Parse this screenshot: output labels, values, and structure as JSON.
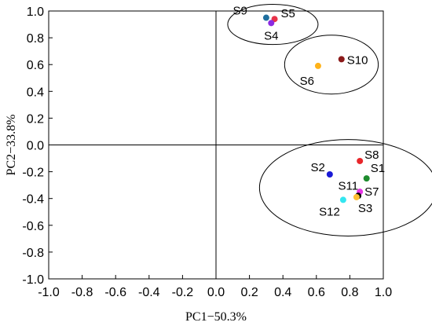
{
  "chart_data": {
    "type": "scatter",
    "xlabel": "PC1−50.3%",
    "ylabel": "PC2−33.8%",
    "xlim": [
      -1.0,
      1.0
    ],
    "ylim": [
      -1.0,
      1.0
    ],
    "x_ticks": [
      "-1.0",
      "-0.8",
      "-0.6",
      "-0.4",
      "-0.2",
      "0.0",
      "0.2",
      "0.4",
      "0.6",
      "0.8",
      "1.0"
    ],
    "y_ticks": [
      "-1.0",
      "-0.8",
      "-0.6",
      "-0.4",
      "-0.2",
      "0.0",
      "0.2",
      "0.4",
      "0.6",
      "0.8",
      "1.0"
    ],
    "grid": false,
    "zero_lines": true,
    "points": [
      {
        "label": "S9",
        "x": 0.3,
        "y": 0.95,
        "color": "#1f6f9f"
      },
      {
        "label": "S5",
        "x": 0.35,
        "y": 0.94,
        "color": "#e8334a"
      },
      {
        "label": "S4",
        "x": 0.33,
        "y": 0.91,
        "color": "#8b2be2"
      },
      {
        "label": "S10",
        "x": 0.75,
        "y": 0.64,
        "color": "#8b1a1a"
      },
      {
        "label": "S6",
        "x": 0.61,
        "y": 0.59,
        "color": "#ffb31a"
      },
      {
        "label": "S8",
        "x": 0.86,
        "y": -0.12,
        "color": "#e8262a"
      },
      {
        "label": "S2",
        "x": 0.68,
        "y": -0.22,
        "color": "#1a1ad6"
      },
      {
        "label": "S1",
        "x": 0.9,
        "y": -0.25,
        "color": "#1e8c2e"
      },
      {
        "label": "S7",
        "x": 0.86,
        "y": -0.35,
        "color": "#e633e6"
      },
      {
        "label": "S11",
        "x": 0.85,
        "y": -0.38,
        "color": "#000000"
      },
      {
        "label": "S3",
        "x": 0.84,
        "y": -0.39,
        "color": "#ffbf33"
      },
      {
        "label": "S12",
        "x": 0.76,
        "y": -0.41,
        "color": "#33e6f0"
      }
    ],
    "ellipses": [
      {
        "name": "group-1",
        "cx": 0.34,
        "cy": 0.9,
        "rx": 0.27,
        "ry": 0.15
      },
      {
        "name": "group-2",
        "cx": 0.69,
        "cy": 0.6,
        "rx": 0.28,
        "ry": 0.22
      },
      {
        "name": "group-3",
        "cx": 0.79,
        "cy": -0.32,
        "rx": 0.53,
        "ry": 0.36
      }
    ]
  }
}
